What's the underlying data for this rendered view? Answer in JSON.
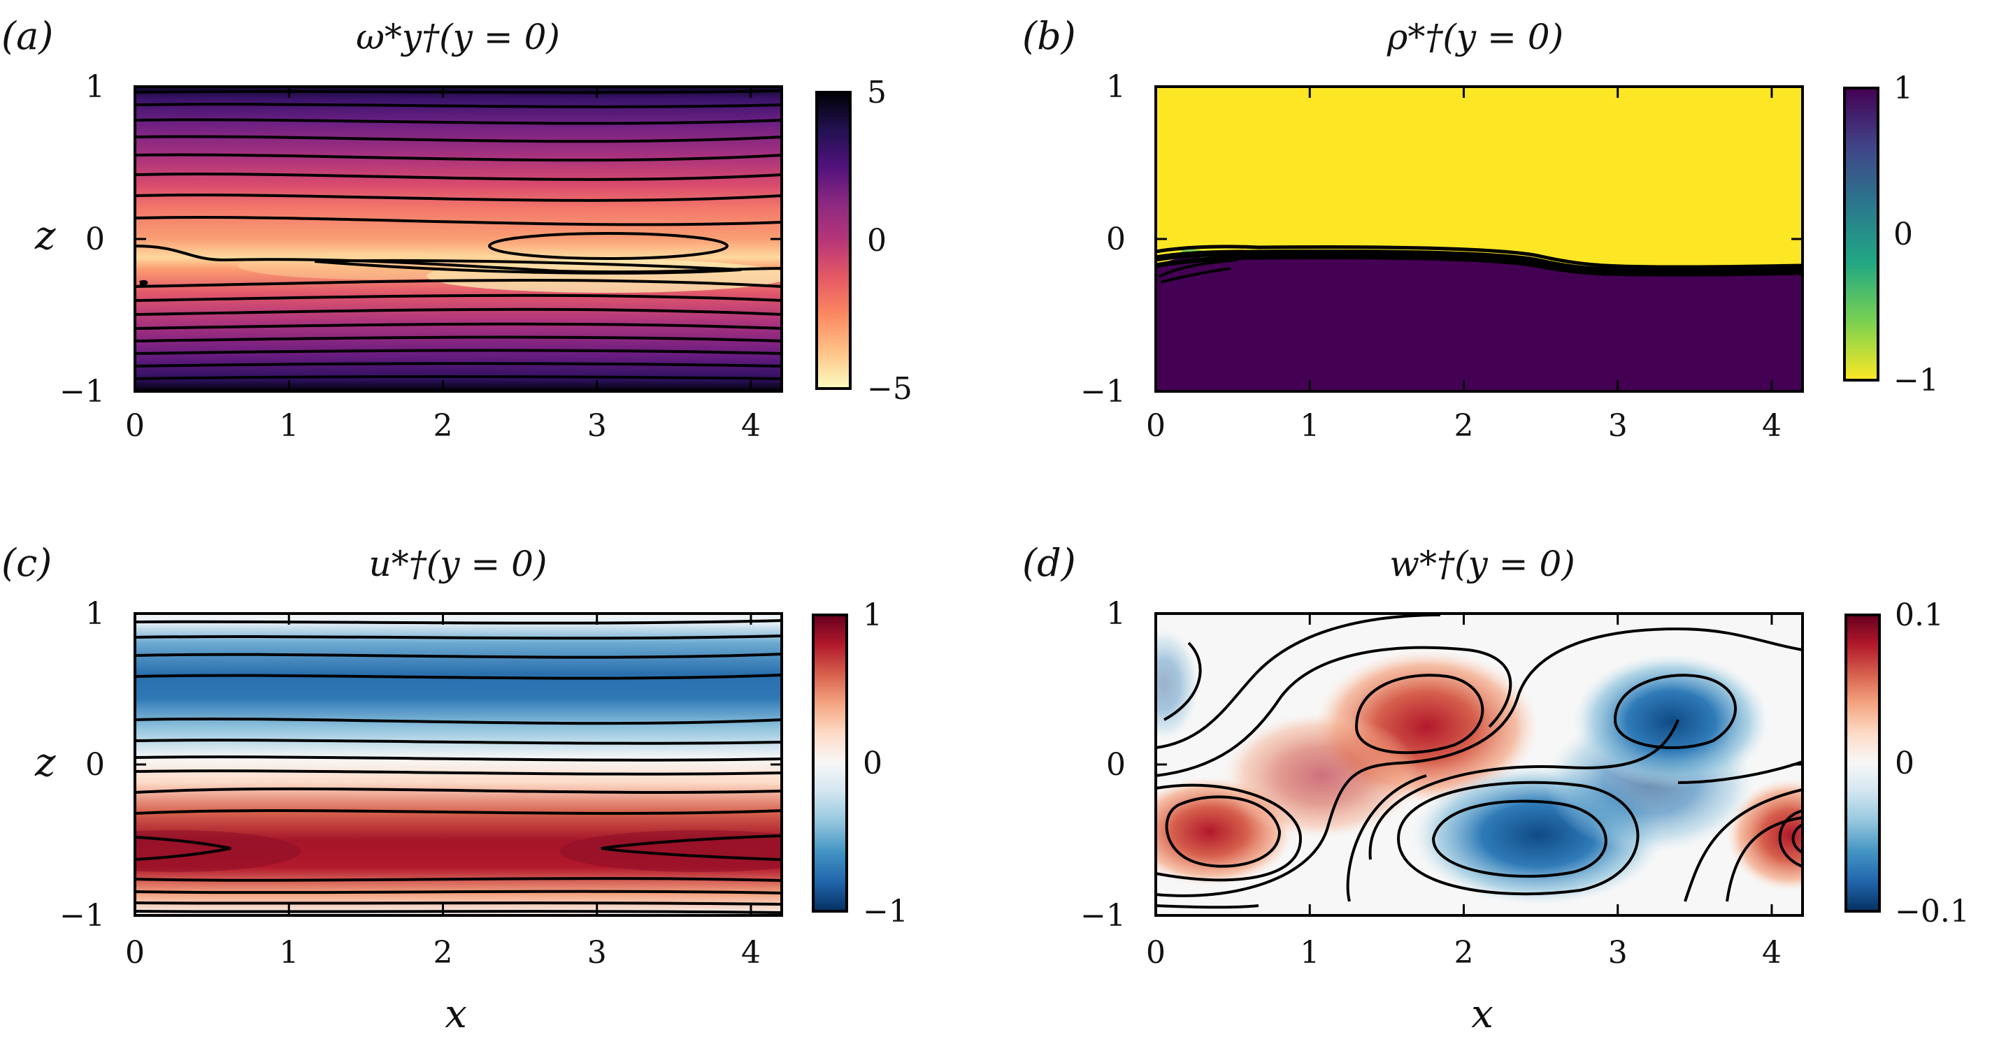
{
  "chart_data": [
    {
      "type": "heatmap",
      "id": "a",
      "panel_label": "(a)",
      "title": "ω*y†(y = 0)",
      "xlabel": "",
      "ylabel": "z",
      "xlim": [
        0,
        4.2
      ],
      "ylim": [
        -1,
        1
      ],
      "xticks": [
        "0",
        "1",
        "2",
        "3",
        "4"
      ],
      "yticks": [
        "−1",
        "0",
        "1"
      ],
      "colormap": "magma",
      "colorbar": {
        "min": -5,
        "max": 5,
        "ticks": [
          "5",
          "0",
          "−5"
        ]
      },
      "contours": "black"
    },
    {
      "type": "heatmap",
      "id": "b",
      "panel_label": "(b)",
      "title": "ρ*†(y = 0)",
      "xlabel": "",
      "ylabel": "",
      "xlim": [
        0,
        4.2
      ],
      "ylim": [
        -1,
        1
      ],
      "xticks": [
        "0",
        "1",
        "2",
        "3",
        "4"
      ],
      "yticks": [
        "−1",
        "0",
        "1"
      ],
      "colormap": "viridis",
      "colorbar": {
        "min": -1,
        "max": 1,
        "ticks": [
          "1",
          "0",
          "−1"
        ]
      },
      "contours": "black"
    },
    {
      "type": "heatmap",
      "id": "c",
      "panel_label": "(c)",
      "title": "u*†(y = 0)",
      "xlabel": "x",
      "ylabel": "z",
      "xlim": [
        0,
        4.2
      ],
      "ylim": [
        -1,
        1
      ],
      "xticks": [
        "0",
        "1",
        "2",
        "3",
        "4"
      ],
      "yticks": [
        "−1",
        "0",
        "1"
      ],
      "colormap": "RdBu",
      "colorbar": {
        "min": -1,
        "max": 1,
        "ticks": [
          "1",
          "0",
          "−1"
        ]
      },
      "contours": "black"
    },
    {
      "type": "heatmap",
      "id": "d",
      "panel_label": "(d)",
      "title": "w*†(y = 0)",
      "xlabel": "x",
      "ylabel": "",
      "xlim": [
        0,
        4.2
      ],
      "ylim": [
        -1,
        1
      ],
      "xticks": [
        "0",
        "1",
        "2",
        "3",
        "4"
      ],
      "yticks": [
        "−1",
        "0",
        "1"
      ],
      "colormap": "RdBu",
      "colorbar": {
        "min": -0.1,
        "max": 0.1,
        "ticks": [
          "0.1",
          "0",
          "−0.1"
        ]
      },
      "contours": "black"
    }
  ],
  "colors": {
    "magma": [
      "#fcfdbf",
      "#fec287",
      "#fb8861",
      "#e55964",
      "#b63679",
      "#8c2981",
      "#51127c",
      "#221150",
      "#000004"
    ],
    "viridis": [
      "#fde725",
      "#7ad151",
      "#22a884",
      "#2a788e",
      "#414487",
      "#440154"
    ],
    "rdbu": [
      "#053061",
      "#2166ac",
      "#4393c3",
      "#92c5de",
      "#d1e5f0",
      "#f7f7f7",
      "#fddbc7",
      "#f4a582",
      "#d6604d",
      "#b2182b",
      "#67001f"
    ]
  }
}
